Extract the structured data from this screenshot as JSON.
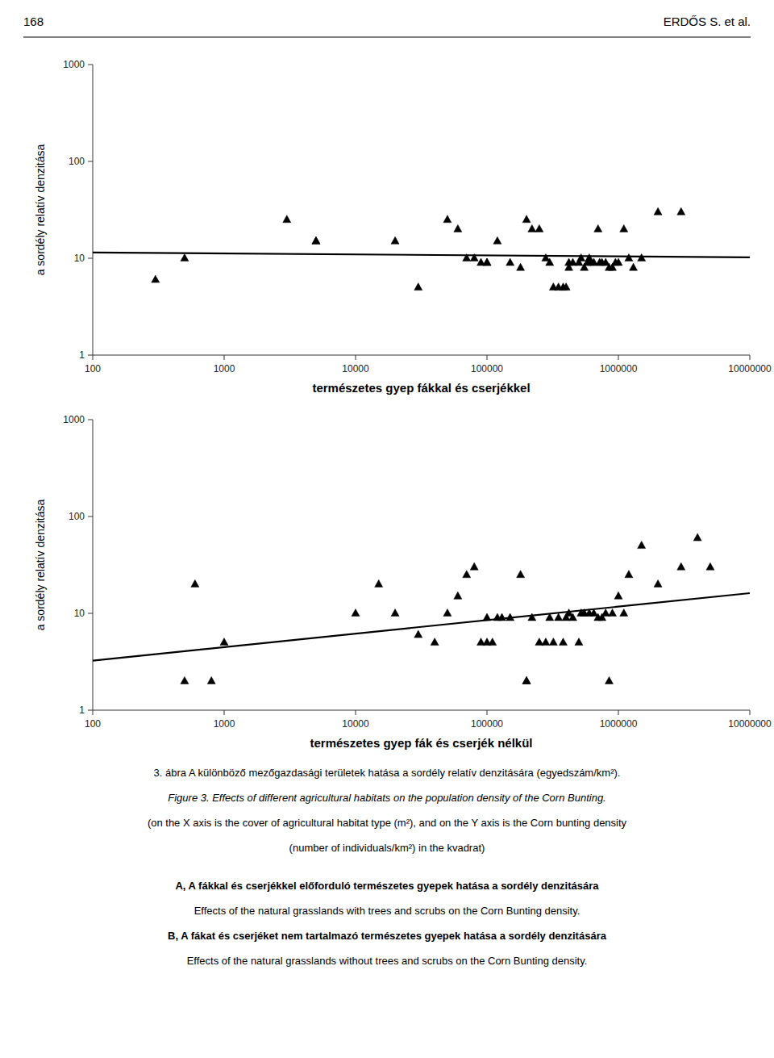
{
  "header": [
    "168",
    "ERDŐS S. et al."
  ],
  "chart_data": [
    {
      "type": "scatter",
      "log": true,
      "grid": false,
      "xlabel": "természetes gyep fákkal és cserjékkel",
      "ylabel": "a sordély relatív denzitása",
      "xlim": [
        100,
        10000000
      ],
      "ylim": [
        1,
        1000
      ],
      "xticks": [
        100,
        1000,
        10000,
        100000,
        1000000,
        10000000
      ],
      "yticks": [
        1,
        10,
        100,
        1000
      ],
      "series": [
        {
          "type": "scatter",
          "marker": "triangle",
          "color": "#000000",
          "x": [
            300,
            500,
            3000,
            5000,
            5000,
            20000,
            30000,
            50000,
            60000,
            70000,
            80000,
            90000,
            100000,
            100000,
            120000,
            150000,
            180000,
            200000,
            220000,
            250000,
            280000,
            300000,
            320000,
            350000,
            380000,
            400000,
            420000,
            420000,
            450000,
            500000,
            520000,
            550000,
            580000,
            600000,
            620000,
            650000,
            700000,
            720000,
            750000,
            800000,
            850000,
            900000,
            950000,
            1000000,
            1100000,
            1200000,
            1300000,
            1500000,
            2000000,
            3000000
          ],
          "values": [
            6,
            10,
            25,
            15,
            15,
            15,
            5,
            25,
            20,
            10,
            10,
            9,
            9,
            9,
            15,
            9,
            8,
            25,
            20,
            20,
            10,
            9,
            5,
            5,
            5,
            5,
            9,
            8,
            9,
            9,
            10,
            8,
            9,
            10,
            9,
            9,
            20,
            9,
            9,
            9,
            8,
            8,
            9,
            9,
            20,
            10,
            8,
            10,
            30,
            30
          ]
        },
        {
          "type": "line",
          "line_style": "solid",
          "color": "#000000",
          "x": [
            100,
            10000000
          ],
          "values": [
            11.48,
            10.21
          ]
        }
      ]
    },
    {
      "type": "scatter",
      "log": true,
      "grid": false,
      "xlabel": "természetes gyep fák és cserjék nélkül",
      "ylabel": "a sordély relatív denzitása",
      "xlim": [
        100,
        10000000
      ],
      "ylim": [
        1,
        1000
      ],
      "xticks": [
        100,
        1000,
        10000,
        100000,
        1000000,
        10000000
      ],
      "yticks": [
        1,
        10,
        100,
        1000
      ],
      "series": [
        {
          "type": "scatter",
          "marker": "triangle",
          "color": "#000000",
          "x": [
            500,
            600,
            800,
            1000,
            10000,
            15000,
            20000,
            30000,
            40000,
            50000,
            60000,
            70000,
            80000,
            90000,
            100000,
            100000,
            110000,
            120000,
            130000,
            150000,
            180000,
            200000,
            200000,
            220000,
            250000,
            280000,
            300000,
            320000,
            350000,
            380000,
            400000,
            420000,
            450000,
            500000,
            520000,
            550000,
            600000,
            650000,
            700000,
            750000,
            800000,
            850000,
            900000,
            1000000,
            1100000,
            1200000,
            1500000,
            2000000,
            3000000,
            4000000,
            5000000
          ],
          "values": [
            2,
            20,
            2,
            5,
            10,
            20,
            10,
            6,
            5,
            10,
            15,
            25,
            30,
            5,
            5,
            9,
            5,
            9,
            9,
            9,
            25,
            2,
            2,
            9,
            5,
            5,
            9,
            5,
            9,
            5,
            9,
            10,
            9,
            5,
            10,
            10,
            10,
            10,
            9,
            9,
            10,
            2,
            10,
            15,
            10,
            25,
            50,
            20,
            30,
            60,
            30
          ]
        },
        {
          "type": "line",
          "line_style": "solid",
          "color": "#000000",
          "x": [
            100,
            10000000
          ],
          "values": [
            3.25,
            16.16
          ]
        }
      ]
    }
  ],
  "caption": [
    "3. ábra A különböző mezőgazdasági területek hatása a sordély relatív denzitására (egyedszám/km²).",
    "Figure 3. Effects of different agricultural habitats on the population density of the Corn Bunting.",
    "(on the X axis is the cover of agricultural habitat type (m²), and on the Y axis is the Corn bunting density",
    "(number of individuals/km²) in the kvadrat)",
    "A, A fákkal és cserjékkel előforduló természetes gyepek hatása a sordély denzitására",
    "Effects of the natural grasslands with trees and scrubs on the Corn Bunting density.",
    "B, A fákat és cserjéket nem tartalmazó természetes gyepek hatása a sordély denzitására",
    "Effects of the natural grasslands without trees and scrubs on the Corn Bunting density."
  ]
}
